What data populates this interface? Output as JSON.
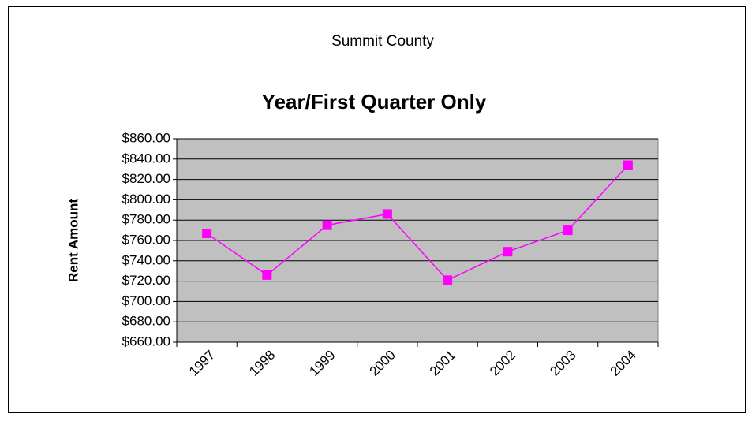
{
  "chart_data": {
    "type": "line",
    "title": "Summit County",
    "subtitle": "Year/First Quarter Only",
    "y_label": "Rent Amount",
    "categories": [
      "1997",
      "1998",
      "1999",
      "2000",
      "2001",
      "2002",
      "2003",
      "2004"
    ],
    "series": [
      {
        "name": "Rent Amount",
        "color": "#ff00ff",
        "values": [
          767,
          726,
          775,
          786,
          721,
          749,
          770,
          834
        ]
      }
    ],
    "ylim": [
      660,
      860
    ],
    "yticks": [
      {
        "value": 660,
        "label": "$660.00"
      },
      {
        "value": 680,
        "label": "$680.00"
      },
      {
        "value": 700,
        "label": "$700.00"
      },
      {
        "value": 720,
        "label": "$720.00"
      },
      {
        "value": 740,
        "label": "$740.00"
      },
      {
        "value": 760,
        "label": "$760.00"
      },
      {
        "value": 780,
        "label": "$780.00"
      },
      {
        "value": 800,
        "label": "$800.00"
      },
      {
        "value": 820,
        "label": "$820.00"
      },
      {
        "value": 840,
        "label": "$840.00"
      },
      {
        "value": 860,
        "label": "$860.00"
      }
    ],
    "grid": true,
    "plot_background": "#c0c0c0"
  }
}
